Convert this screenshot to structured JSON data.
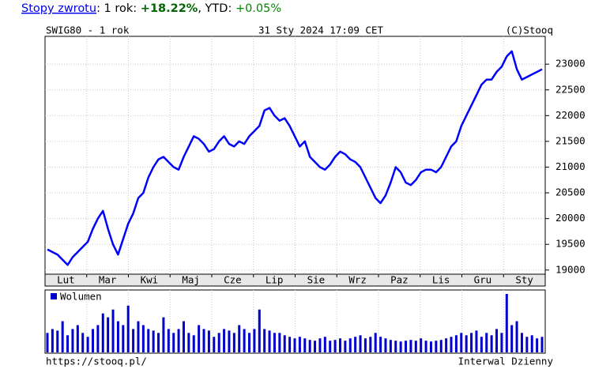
{
  "header": {
    "parts": [
      "Stopy zwrotu",
      ": 1 rok: ",
      "+18.22%",
      ", YTD: ",
      "+0.05%"
    ]
  },
  "chart_data": {
    "type": "line",
    "title": "SWIG80 - 1 rok",
    "subtitle": "31 Sty 2024 17:09 CET",
    "copyright": "(C)Stooq",
    "footer_left": "https://stooq.pl/",
    "footer_right": "Interwal Dzienny",
    "months": [
      "Lut",
      "Mar",
      "Kwi",
      "Maj",
      "Cze",
      "Lip",
      "Sie",
      "Wrz",
      "Paz",
      "Lis",
      "Gru",
      "Sty"
    ],
    "color": "#0000ff",
    "ylim": [
      18920,
      23540
    ],
    "yticks": [
      19000,
      19500,
      20000,
      20500,
      21000,
      21500,
      22000,
      22500,
      23000
    ],
    "grid": true,
    "values": [
      19400,
      19350,
      19300,
      19200,
      19100,
      19250,
      19350,
      19450,
      19550,
      19800,
      20000,
      20150,
      19800,
      19500,
      19300,
      19600,
      19900,
      20100,
      20400,
      20500,
      20800,
      21000,
      21150,
      21200,
      21100,
      21000,
      20950,
      21200,
      21400,
      21600,
      21550,
      21450,
      21300,
      21350,
      21500,
      21600,
      21450,
      21400,
      21500,
      21450,
      21600,
      21700,
      21800,
      22100,
      22150,
      22000,
      21900,
      21950,
      21800,
      21600,
      21400,
      21500,
      21200,
      21100,
      21000,
      20950,
      21050,
      21200,
      21300,
      21250,
      21150,
      21100,
      21000,
      20800,
      20600,
      20400,
      20300,
      20450,
      20700,
      21000,
      20900,
      20700,
      20650,
      20750,
      20900,
      20950,
      20950,
      20900,
      21000,
      21200,
      21400,
      21500,
      21800,
      22000,
      22200,
      22400,
      22600,
      22700,
      22700,
      22850,
      22950,
      23150,
      23250,
      22900,
      22700,
      22750,
      22800,
      22850,
      22900
    ],
    "volume_name": "Wolumen",
    "volume": [
      25,
      30,
      28,
      40,
      22,
      30,
      35,
      25,
      20,
      30,
      35,
      50,
      45,
      55,
      40,
      35,
      60,
      30,
      40,
      35,
      30,
      28,
      25,
      45,
      30,
      25,
      30,
      40,
      25,
      22,
      35,
      30,
      28,
      20,
      25,
      30,
      28,
      25,
      35,
      30,
      25,
      30,
      55,
      30,
      28,
      25,
      25,
      22,
      20,
      18,
      20,
      18,
      16,
      15,
      18,
      20,
      15,
      16,
      18,
      15,
      18,
      20,
      22,
      18,
      20,
      25,
      20,
      18,
      16,
      15,
      14,
      15,
      16,
      15,
      18,
      15,
      14,
      15,
      16,
      18,
      20,
      22,
      25,
      22,
      25,
      28,
      20,
      25,
      22,
      30,
      25,
      75,
      35,
      40,
      25,
      20,
      22,
      18,
      20
    ]
  }
}
